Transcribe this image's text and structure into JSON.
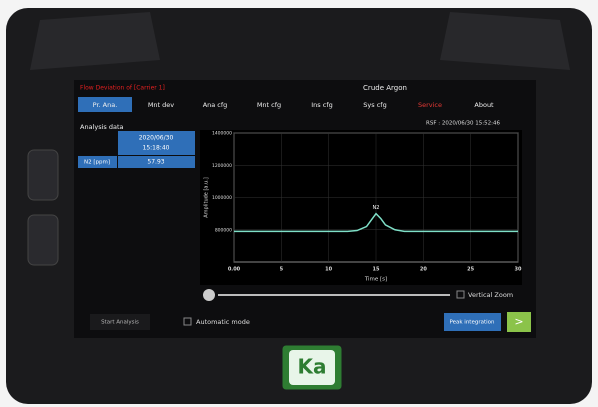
{
  "header": {
    "warning": "Flow Deviation of [Carrier 1]",
    "title": "Crude Argon"
  },
  "tabs": [
    "Pr. Ana.",
    "Mnt dev",
    "Ana cfg",
    "Mnt cfg",
    "Ins cfg",
    "Sys cfg",
    "Service",
    "About"
  ],
  "timestamp": "RSF : 2020/06/30 15:52:46",
  "analysis": {
    "title": "Analysis data",
    "date": "2020/06/30",
    "time": "15:18:40",
    "label": "N2 [ppm]",
    "value": "57.93"
  },
  "chart_data": {
    "type": "line",
    "xlabel": "Time [s]",
    "ylabel": "Amplitude [a.u.]",
    "annotation": "N2",
    "xlim": [
      0,
      30
    ],
    "xticks": [
      {
        "value": 0,
        "label": "0.00"
      },
      5,
      10,
      15,
      20,
      25,
      30
    ],
    "ylim": [
      600000,
      1400000
    ],
    "yticks": [
      800000,
      1000000,
      1200000,
      1400000
    ],
    "grid": true,
    "series": [
      {
        "color": "#7fe0c8",
        "x": [
          0,
          12,
          13,
          14,
          14.5,
          15,
          15.5,
          16,
          17,
          18,
          30
        ],
        "values": [
          790000,
          790000,
          795000,
          820000,
          860000,
          900000,
          870000,
          830000,
          800000,
          790000,
          790000
        ]
      }
    ]
  },
  "controls": {
    "zoom": "Vertical Zoom",
    "start": "Start Analysis",
    "auto": "Automatic mode",
    "peak": "Peak integration",
    "next": ">"
  },
  "logo": "Ka"
}
